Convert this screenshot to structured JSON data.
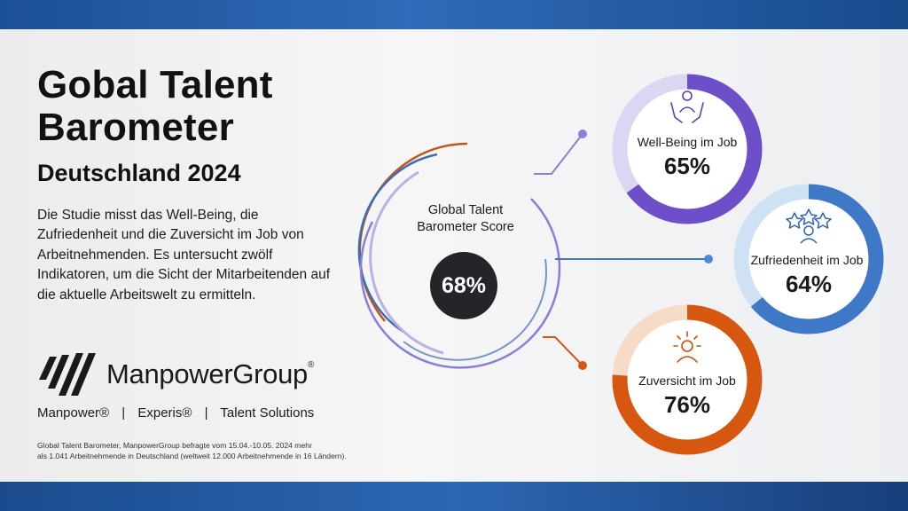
{
  "title_line1": "Gobal Talent",
  "title_line2": "Barometer",
  "subtitle": "Deutschland 2024",
  "description": "Die Studie misst das Well-Being, die Zufriedenheit und die Zuversicht im Job von Arbeitnehmenden. Es untersucht zwölf Indikatoren, um die Sicht der Mitarbeitenden auf die aktuelle Arbeitswelt zu ermitteln.",
  "logo": {
    "name": "ManpowerGroup",
    "trademark": "®"
  },
  "brands": [
    "Manpower®",
    "Experis®",
    "Talent Solutions"
  ],
  "brand_separator": "|",
  "footnote_line1": "Global Talent Barometer, ManpowerGroup befragte vom 15.04.-10.05. 2024 mehr",
  "footnote_line2": "als 1.041 Arbeitnehmende in Deutschland (weltweit 12.000 Arbeitnehmende in 16 Ländern).",
  "center": {
    "label_line1": "Global Talent",
    "label_line2": "Barometer Score",
    "value": "68%"
  },
  "metrics": [
    {
      "label": "Well-Being im Job",
      "value": "65%",
      "fraction": 0.65,
      "icon": "hands-person-icon",
      "color": "#6d4fc9",
      "light": "#dcd6f3"
    },
    {
      "label": "Zufriedenheit im Job",
      "value": "64%",
      "fraction": 0.64,
      "icon": "stars-person-icon",
      "color": "#3f78c6",
      "light": "#cfe2f3"
    },
    {
      "label": "Zuversicht im Job",
      "value": "76%",
      "fraction": 0.76,
      "icon": "sun-person-icon",
      "color": "#d6570f",
      "light": "#f6dcc6"
    }
  ],
  "colors": {
    "band": "#2a62ad",
    "arc_orange": "#c0561b",
    "arc_blue": "#3d6fb0",
    "arc_purple": "#8a7fd6",
    "score_bg": "#242529"
  }
}
